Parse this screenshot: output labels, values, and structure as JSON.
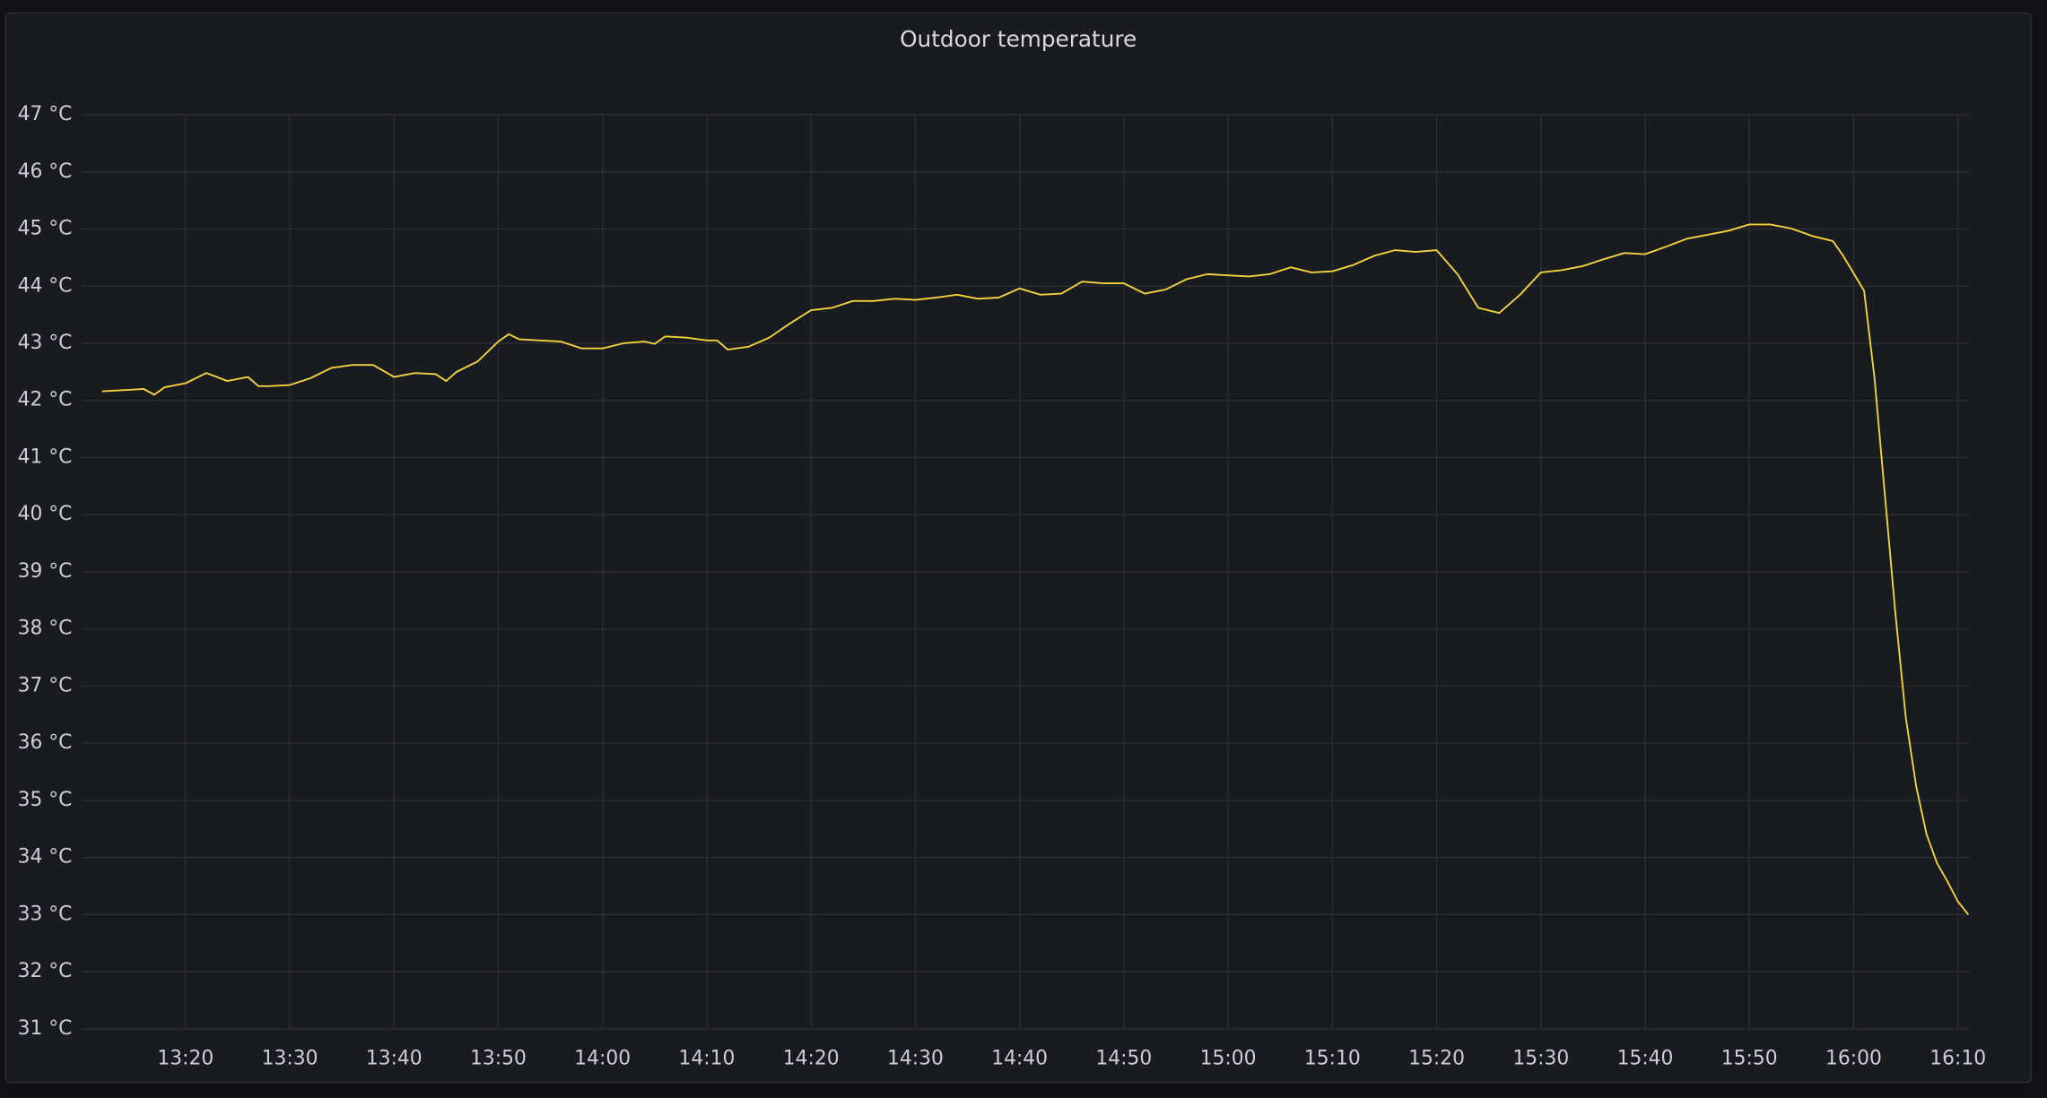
{
  "chart_data": {
    "type": "line",
    "title": "Outdoor temperature",
    "color": "#f2d33f",
    "grid": true,
    "x": [
      "13:12",
      "13:14",
      "13:16",
      "13:17",
      "13:18",
      "13:20",
      "13:22",
      "13:24",
      "13:26",
      "13:27",
      "13:28",
      "13:30",
      "13:32",
      "13:34",
      "13:36",
      "13:38",
      "13:40",
      "13:42",
      "13:44",
      "13:45",
      "13:46",
      "13:48",
      "13:50",
      "13:51",
      "13:52",
      "13:54",
      "13:56",
      "13:58",
      "14:00",
      "14:02",
      "14:04",
      "14:05",
      "14:06",
      "14:08",
      "14:10",
      "14:11",
      "14:12",
      "14:14",
      "14:16",
      "14:18",
      "14:20",
      "14:22",
      "14:24",
      "14:26",
      "14:28",
      "14:30",
      "14:32",
      "14:34",
      "14:36",
      "14:38",
      "14:40",
      "14:42",
      "14:44",
      "14:46",
      "14:48",
      "14:50",
      "14:52",
      "14:54",
      "14:56",
      "14:58",
      "15:00",
      "15:02",
      "15:04",
      "15:06",
      "15:08",
      "15:10",
      "15:12",
      "15:14",
      "15:16",
      "15:18",
      "15:20",
      "15:22",
      "15:24",
      "15:26",
      "15:28",
      "15:30",
      "15:32",
      "15:34",
      "15:36",
      "15:38",
      "15:40",
      "15:42",
      "15:44",
      "15:46",
      "15:48",
      "15:50",
      "15:52",
      "15:54",
      "15:56",
      "15:58",
      "15:59",
      "16:01",
      "16:02",
      "16:03",
      "16:04",
      "16:05",
      "16:06",
      "16:07",
      "16:08",
      "16:09",
      "16:10",
      "16:11"
    ],
    "values": [
      42.16,
      42.18,
      42.2,
      42.1,
      42.23,
      42.3,
      42.48,
      42.34,
      42.41,
      42.25,
      42.25,
      42.27,
      42.39,
      42.57,
      42.62,
      42.62,
      42.41,
      42.48,
      42.46,
      42.34,
      42.5,
      42.68,
      43.03,
      43.16,
      43.07,
      43.05,
      43.03,
      42.91,
      42.91,
      43.0,
      43.03,
      42.99,
      43.12,
      43.1,
      43.05,
      43.05,
      42.89,
      42.94,
      43.1,
      43.35,
      43.58,
      43.62,
      43.74,
      43.74,
      43.78,
      43.76,
      43.8,
      43.85,
      43.78,
      43.8,
      43.96,
      43.85,
      43.87,
      44.08,
      44.05,
      44.05,
      43.87,
      43.94,
      44.12,
      44.21,
      44.19,
      44.17,
      44.21,
      44.33,
      44.24,
      44.26,
      44.37,
      44.53,
      44.63,
      44.6,
      44.63,
      44.21,
      43.62,
      43.53,
      43.85,
      44.24,
      44.28,
      44.35,
      44.47,
      44.58,
      44.56,
      44.69,
      44.83,
      44.9,
      44.97,
      45.08,
      45.08,
      45.01,
      44.88,
      44.79,
      44.53,
      43.92,
      42.39,
      40.33,
      38.28,
      36.45,
      35.24,
      34.4,
      33.9,
      33.58,
      33.23,
      33.0
    ],
    "xlim": [
      "13:10",
      "16:11"
    ],
    "xticks": [
      "13:20",
      "13:30",
      "13:40",
      "13:50",
      "14:00",
      "14:10",
      "14:20",
      "14:30",
      "14:40",
      "14:50",
      "15:00",
      "15:10",
      "15:20",
      "15:30",
      "15:40",
      "15:50",
      "16:00",
      "16:10"
    ],
    "ylim": [
      31,
      47
    ],
    "yticks": [
      {
        "value": 31,
        "label": "31 °C"
      },
      {
        "value": 32,
        "label": "32 °C"
      },
      {
        "value": 33,
        "label": "33 °C"
      },
      {
        "value": 34,
        "label": "34 °C"
      },
      {
        "value": 35,
        "label": "35 °C"
      },
      {
        "value": 36,
        "label": "36 °C"
      },
      {
        "value": 37,
        "label": "37 °C"
      },
      {
        "value": 38,
        "label": "38 °C"
      },
      {
        "value": 39,
        "label": "39 °C"
      },
      {
        "value": 40,
        "label": "40 °C"
      },
      {
        "value": 41,
        "label": "41 °C"
      },
      {
        "value": 42,
        "label": "42 °C"
      },
      {
        "value": 43,
        "label": "43 °C"
      },
      {
        "value": 44,
        "label": "44 °C"
      },
      {
        "value": 45,
        "label": "45 °C"
      },
      {
        "value": 46,
        "label": "46 °C"
      },
      {
        "value": 47,
        "label": "47 °C"
      }
    ]
  }
}
